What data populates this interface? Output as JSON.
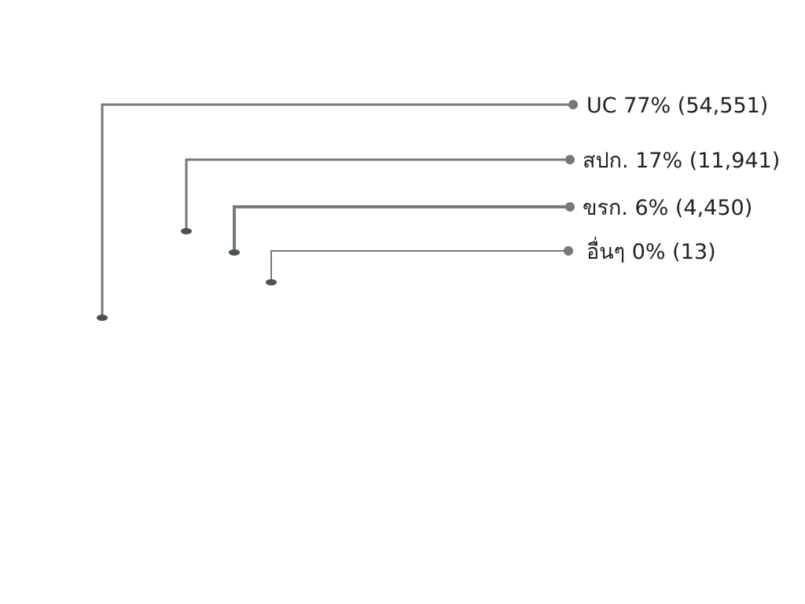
{
  "chart_data": {
    "type": "bar",
    "title": "",
    "xlabel": "",
    "ylabel": "",
    "value_unit": "percent",
    "categories": [
      "UC",
      "สปก.",
      "ขรก.",
      "อื่นๆ"
    ],
    "values": [
      77,
      17,
      6,
      0
    ],
    "counts": [
      "54,551",
      "11,941",
      "4,450",
      "13"
    ],
    "labels": [
      "UC 77% (54,551)",
      "สปก. 17% (11,941)",
      "ขรก. 6% (4,450)",
      "อื่นๆ 0% (13)"
    ],
    "grid": false,
    "legend": "none",
    "colors": {
      "line": "#737a7f",
      "dot": "#737a7f",
      "base": "#4b5256"
    }
  }
}
